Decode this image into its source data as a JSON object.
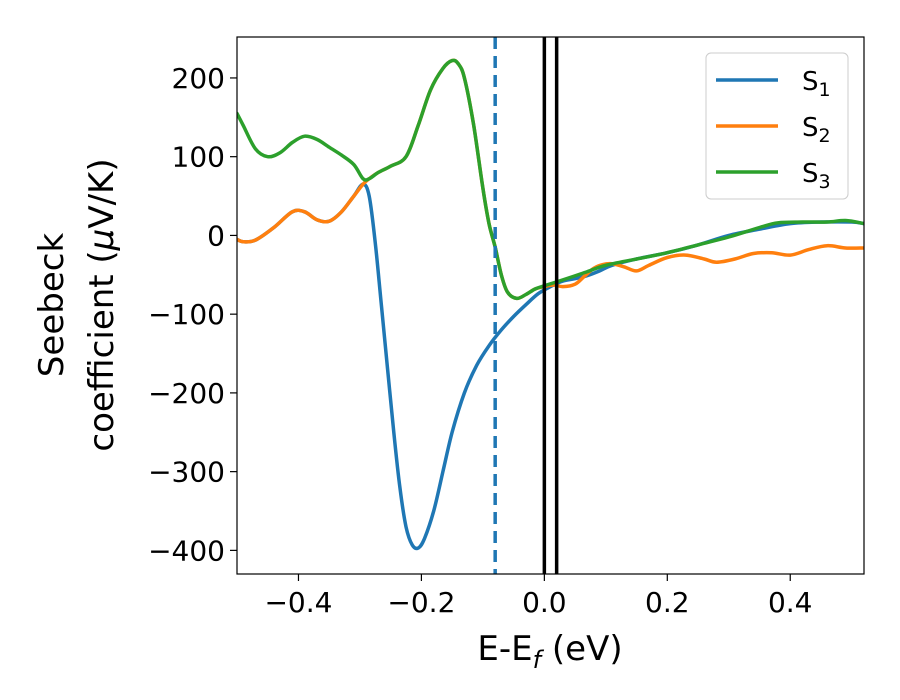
{
  "chart_data": {
    "type": "line",
    "xlabel": "E-E",
    "xlabel_sub": "f",
    "xlabel_unit": " (eV)",
    "ylabel_line1": "Seebeck",
    "ylabel_line2_prefix": "coefficient  (",
    "ylabel_mu": "μ",
    "ylabel_line2_suffix": "V/K)",
    "xlim": [
      -0.5,
      0.52
    ],
    "ylim": [
      -430,
      252
    ],
    "x_ticks": [
      -0.4,
      -0.2,
      0.0,
      0.2,
      0.4
    ],
    "x_tick_labels": [
      "−0.4",
      "−0.2",
      "0.0",
      "0.2",
      "0.4"
    ],
    "y_ticks": [
      200,
      100,
      0,
      -100,
      -200,
      -300,
      -400
    ],
    "y_tick_labels": [
      "200",
      "100",
      "0",
      "−100",
      "−200",
      "−300",
      "−400"
    ],
    "grid": false,
    "legend_position": "top-right",
    "vlines": [
      {
        "x": -0.08,
        "style": "dashed",
        "color": "#1f77b4"
      },
      {
        "x": 0.0,
        "style": "solid",
        "color": "#000000"
      },
      {
        "x": 0.02,
        "style": "solid",
        "color": "#000000"
      }
    ],
    "series": [
      {
        "name": "S",
        "sub": "1",
        "color": "#1f77b4",
        "points": [
          [
            -0.5,
            -5
          ],
          [
            -0.49,
            -8
          ],
          [
            -0.47,
            -6
          ],
          [
            -0.44,
            10
          ],
          [
            -0.41,
            30
          ],
          [
            -0.39,
            30
          ],
          [
            -0.37,
            20
          ],
          [
            -0.35,
            18
          ],
          [
            -0.33,
            30
          ],
          [
            -0.31,
            50
          ],
          [
            -0.295,
            65
          ],
          [
            -0.285,
            50
          ],
          [
            -0.275,
            -10
          ],
          [
            -0.265,
            -90
          ],
          [
            -0.255,
            -170
          ],
          [
            -0.245,
            -250
          ],
          [
            -0.235,
            -320
          ],
          [
            -0.225,
            -370
          ],
          [
            -0.215,
            -393
          ],
          [
            -0.205,
            -397
          ],
          [
            -0.195,
            -385
          ],
          [
            -0.18,
            -350
          ],
          [
            -0.165,
            -300
          ],
          [
            -0.15,
            -250
          ],
          [
            -0.13,
            -200
          ],
          [
            -0.11,
            -165
          ],
          [
            -0.09,
            -140
          ],
          [
            -0.07,
            -120
          ],
          [
            -0.05,
            -103
          ],
          [
            -0.03,
            -88
          ],
          [
            -0.01,
            -74
          ],
          [
            0.01,
            -65
          ],
          [
            0.03,
            -58
          ],
          [
            0.05,
            -55
          ],
          [
            0.07,
            -51
          ],
          [
            0.09,
            -45
          ],
          [
            0.11,
            -38
          ],
          [
            0.15,
            -30
          ],
          [
            0.2,
            -22
          ],
          [
            0.25,
            -12
          ],
          [
            0.3,
            0
          ],
          [
            0.35,
            8
          ],
          [
            0.4,
            15
          ],
          [
            0.45,
            17
          ],
          [
            0.5,
            17
          ],
          [
            0.52,
            15
          ]
        ]
      },
      {
        "name": "S",
        "sub": "2",
        "color": "#ff7f0e",
        "points": [
          [
            -0.5,
            -5
          ],
          [
            -0.49,
            -8
          ],
          [
            -0.47,
            -6
          ],
          [
            -0.44,
            10
          ],
          [
            -0.41,
            30
          ],
          [
            -0.39,
            30
          ],
          [
            -0.37,
            20
          ],
          [
            -0.35,
            18
          ],
          [
            -0.33,
            30
          ],
          [
            -0.31,
            50
          ],
          [
            -0.295,
            65
          ],
          [
            -0.285,
            72
          ],
          [
            -0.27,
            80
          ],
          [
            -0.25,
            88
          ],
          [
            -0.225,
            100
          ],
          [
            -0.205,
            140
          ],
          [
            -0.185,
            185
          ],
          [
            -0.165,
            212
          ],
          [
            -0.15,
            222
          ],
          [
            -0.14,
            218
          ],
          [
            -0.13,
            200
          ],
          [
            -0.115,
            140
          ],
          [
            -0.1,
            60
          ],
          [
            -0.09,
            15
          ],
          [
            -0.08,
            -15
          ],
          [
            -0.07,
            -50
          ],
          [
            -0.06,
            -72
          ],
          [
            -0.045,
            -80
          ],
          [
            -0.03,
            -75
          ],
          [
            -0.015,
            -68
          ],
          [
            0.0,
            -65
          ],
          [
            0.015,
            -63
          ],
          [
            0.03,
            -65
          ],
          [
            0.05,
            -62
          ],
          [
            0.065,
            -52
          ],
          [
            0.08,
            -42
          ],
          [
            0.095,
            -37
          ],
          [
            0.11,
            -36
          ],
          [
            0.13,
            -40
          ],
          [
            0.15,
            -45
          ],
          [
            0.17,
            -38
          ],
          [
            0.2,
            -28
          ],
          [
            0.23,
            -25
          ],
          [
            0.26,
            -30
          ],
          [
            0.28,
            -34
          ],
          [
            0.31,
            -30
          ],
          [
            0.34,
            -23
          ],
          [
            0.37,
            -22
          ],
          [
            0.4,
            -25
          ],
          [
            0.43,
            -18
          ],
          [
            0.46,
            -13
          ],
          [
            0.49,
            -16
          ],
          [
            0.52,
            -16
          ]
        ]
      },
      {
        "name": "S",
        "sub": "3",
        "color": "#2ca02c",
        "points": [
          [
            -0.5,
            155
          ],
          [
            -0.49,
            140
          ],
          [
            -0.47,
            110
          ],
          [
            -0.45,
            100
          ],
          [
            -0.43,
            105
          ],
          [
            -0.41,
            118
          ],
          [
            -0.39,
            126
          ],
          [
            -0.37,
            122
          ],
          [
            -0.35,
            112
          ],
          [
            -0.33,
            102
          ],
          [
            -0.31,
            90
          ],
          [
            -0.295,
            72
          ],
          [
            -0.285,
            72
          ],
          [
            -0.27,
            80
          ],
          [
            -0.25,
            88
          ],
          [
            -0.225,
            100
          ],
          [
            -0.205,
            140
          ],
          [
            -0.185,
            185
          ],
          [
            -0.165,
            212
          ],
          [
            -0.15,
            222
          ],
          [
            -0.14,
            218
          ],
          [
            -0.13,
            200
          ],
          [
            -0.115,
            140
          ],
          [
            -0.1,
            60
          ],
          [
            -0.09,
            15
          ],
          [
            -0.08,
            -15
          ],
          [
            -0.07,
            -50
          ],
          [
            -0.06,
            -72
          ],
          [
            -0.045,
            -80
          ],
          [
            -0.03,
            -75
          ],
          [
            -0.015,
            -68
          ],
          [
            0.0,
            -64
          ],
          [
            0.02,
            -59
          ],
          [
            0.04,
            -54
          ],
          [
            0.07,
            -46
          ],
          [
            0.1,
            -38
          ],
          [
            0.15,
            -30
          ],
          [
            0.2,
            -22
          ],
          [
            0.25,
            -12
          ],
          [
            0.3,
            -2
          ],
          [
            0.35,
            10
          ],
          [
            0.38,
            16
          ],
          [
            0.42,
            17
          ],
          [
            0.46,
            17
          ],
          [
            0.49,
            19
          ],
          [
            0.52,
            15
          ]
        ]
      }
    ]
  }
}
